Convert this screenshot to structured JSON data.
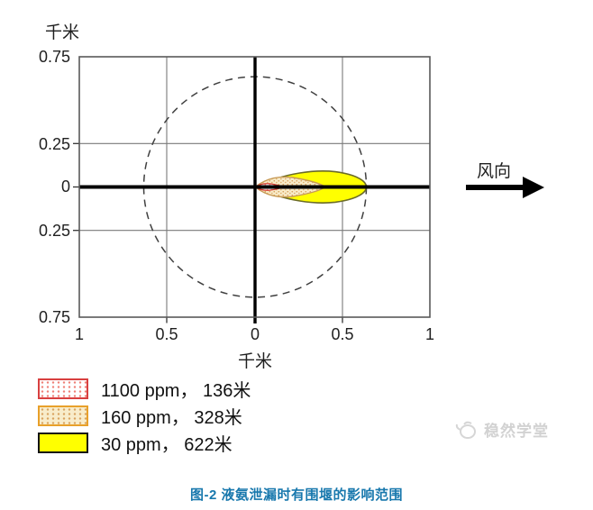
{
  "page": {
    "caption": "图-2 液氨泄漏时有围堰的影响范围",
    "watermark": "稳然学堂"
  },
  "chart_data": {
    "type": "area",
    "description": "Dispersion plume contours of a liquid ammonia leak (with dike); plume extends downwind (right) from origin; dashed circle marks outer impact radius",
    "x_axis": {
      "label": "千米",
      "range": [
        -1,
        1
      ],
      "tick_values": [
        -1,
        -0.5,
        0,
        0.5,
        1
      ],
      "tick_labels": [
        "1",
        "0.5",
        "0",
        "0.5",
        "1"
      ]
    },
    "y_axis": {
      "label": "千米",
      "range": [
        -0.75,
        0.75
      ],
      "tick_values": [
        0.75,
        0.25,
        0,
        -0.25,
        -0.75
      ],
      "tick_labels": [
        "0.75",
        "0.25",
        "0",
        "0.25",
        "0.75"
      ]
    },
    "grid": "on",
    "wind": {
      "label": "风向",
      "direction": "right"
    },
    "dashed_circle": {
      "center_km": [
        0,
        0
      ],
      "radius_km": 0.635
    },
    "plumes": [
      {
        "name": "30 ppm",
        "distance_m": 622,
        "drawn_length_km": 0.635,
        "half_width_km": 0.1,
        "end": "blunt",
        "fill": "#ffff00",
        "pattern": "",
        "stroke": "#6b6b28"
      },
      {
        "name": "160 ppm",
        "distance_m": 328,
        "drawn_length_km": 0.4,
        "half_width_km": 0.062,
        "end": "pointed",
        "fill": "#f8ecca",
        "pattern": "tanDots",
        "stroke": "#c79a55"
      },
      {
        "name": "1100 ppm",
        "distance_m": 136,
        "drawn_length_km": 0.16,
        "half_width_km": 0.021,
        "end": "pointed",
        "fill": "#ffffff",
        "pattern": "redDots",
        "stroke": "#d23a30"
      }
    ],
    "legend": [
      {
        "swatch": "red-dotted",
        "label": "1100 ppm， 136米"
      },
      {
        "swatch": "tan-dotted",
        "label": "160 ppm， 328米"
      },
      {
        "swatch": "yellow-solid",
        "label": "30 ppm， 622米"
      }
    ],
    "colors": {
      "plume_30ppm": "#ffff00",
      "plume_160ppm": "#f8ecca",
      "plume_1100ppm_outline": "#d23a30",
      "caption_blue": "#1878ad"
    }
  }
}
